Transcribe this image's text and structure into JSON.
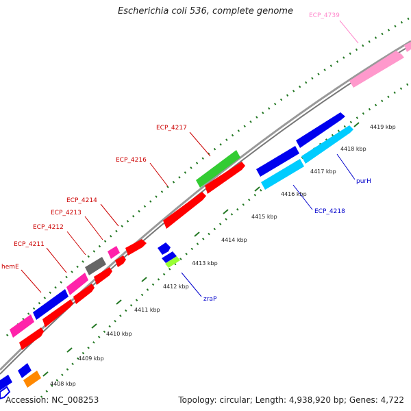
{
  "title": "Escherichia coli 536, complete genome",
  "footer": {
    "accession": "Accession: NC_008253",
    "summary": "Topology: circular; Length: 4,938,920 bp; Genes: 4,722"
  },
  "colors": {
    "red": "#ff0000",
    "blue": "#0000ee",
    "cyan": "#00ccff",
    "green": "#33cc33",
    "magenta": "#ff22aa",
    "pink": "#ff99cc",
    "gray": "#666666",
    "orange": "#ff8800",
    "lime": "#99ff33",
    "label_red": "#cc0000",
    "label_blue": "#0000cc",
    "label_pink": "#ff88cc",
    "backbone": "#888888",
    "ring": "#227722"
  },
  "ticks": [
    "4408 kbp",
    "4409 kbp",
    "4410 kbp",
    "4411 kbp",
    "4412 kbp",
    "4413 kbp",
    "4414 kbp",
    "4415 kbp",
    "4416 kbp",
    "4417 kbp",
    "4418 kbp",
    "4419 kbp"
  ],
  "labels": {
    "hemE": "hemE",
    "ECP_4211": "ECP_4211",
    "ECP_4212": "ECP_4212",
    "ECP_4213": "ECP_4213",
    "ECP_4214": "ECP_4214",
    "ECP_4216": "ECP_4216",
    "ECP_4217": "ECP_4217",
    "ECP_4739": "ECP_4739",
    "purH": "purH",
    "ECP_4218": "ECP_4218",
    "zraP": "zraP"
  }
}
